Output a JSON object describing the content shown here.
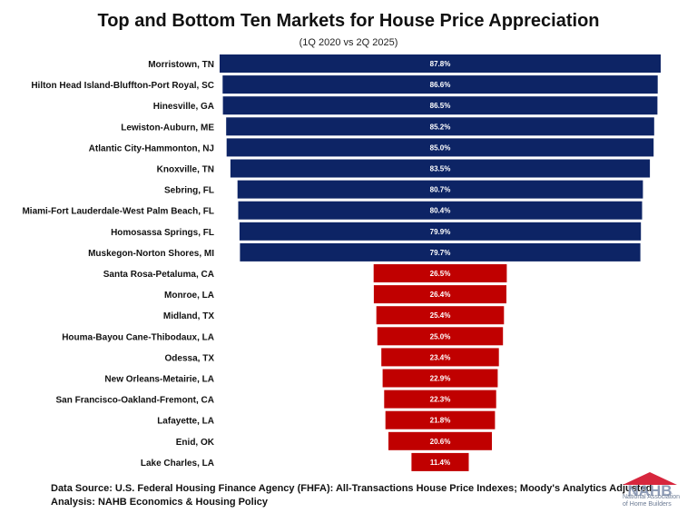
{
  "title": "Top and Bottom Ten Markets for House Price Appreciation",
  "subtitle": "(1Q 2020 vs 2Q 2025)",
  "colors": {
    "top_bar": "#0d2465",
    "bottom_bar": "#c00000",
    "label_text": "#ffffff"
  },
  "chart_data": {
    "type": "bar",
    "orientation": "horizontal-centered",
    "categories": [
      "Morristown, TN",
      "Hilton Head Island-Bluffton-Port Royal, SC",
      "Hinesville, GA",
      "Lewiston-Auburn, ME",
      "Atlantic City-Hammonton, NJ",
      "Knoxville, TN",
      "Sebring, FL",
      "Miami-Fort Lauderdale-West Palm Beach, FL",
      "Homosassa Springs, FL",
      "Muskegon-Norton Shores, MI",
      "Santa Rosa-Petaluma, CA",
      "Monroe, LA",
      "Midland, TX",
      "Houma-Bayou Cane-Thibodaux, LA",
      "Odessa, TX",
      "New Orleans-Metairie, LA",
      "San Francisco-Oakland-Fremont, CA",
      "Lafayette, LA",
      "Enid, OK",
      "Lake Charles, LA"
    ],
    "values": [
      87.8,
      86.6,
      86.5,
      85.2,
      85.0,
      83.5,
      80.7,
      80.4,
      79.9,
      79.7,
      26.5,
      26.4,
      25.4,
      25.0,
      23.4,
      22.9,
      22.3,
      21.8,
      20.6,
      11.4
    ],
    "labels": [
      "87.8%",
      "86.6%",
      "86.5%",
      "85.2%",
      "85.0%",
      "83.5%",
      "80.7%",
      "80.4%",
      "79.9%",
      "79.7%",
      "26.5%",
      "26.4%",
      "25.4%",
      "25.0%",
      "23.4%",
      "22.9%",
      "22.3%",
      "21.8%",
      "20.6%",
      "11.4%"
    ],
    "groups": [
      "top",
      "top",
      "top",
      "top",
      "top",
      "top",
      "top",
      "top",
      "top",
      "top",
      "bottom",
      "bottom",
      "bottom",
      "bottom",
      "bottom",
      "bottom",
      "bottom",
      "bottom",
      "bottom",
      "bottom"
    ],
    "xlim": [
      0,
      87.8
    ],
    "grid": false
  },
  "footer": {
    "source": "Data Source: U.S. Federal Housing Finance Agency (FHFA): All-Transactions House Price Indexes; Moody's Analytics Adjusted.",
    "analysis": "Analysis: NAHB Economics & Housing Policy"
  },
  "logo": {
    "name": "NAHB",
    "line1": "National Association",
    "line2": "of Home Builders"
  }
}
